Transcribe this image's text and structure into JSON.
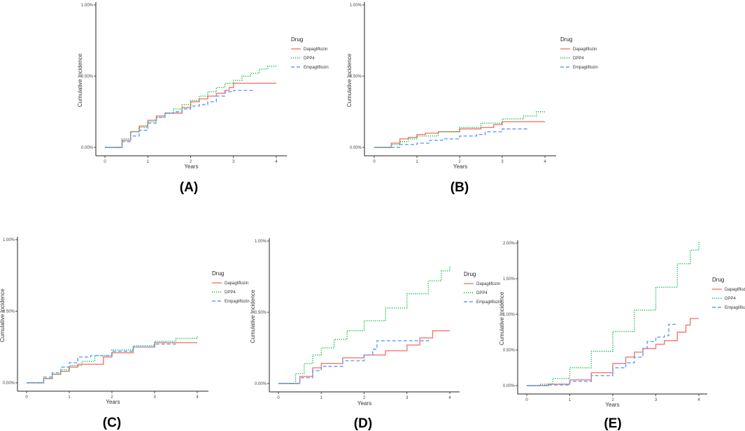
{
  "chart_data": [
    {
      "type": "line",
      "panel_label": "(A)",
      "xlabel": "Years",
      "ylabel": "Cumulative Incidence",
      "xlim": [
        0,
        4
      ],
      "ylim": [
        0,
        1.0
      ],
      "x_ticks": [
        0,
        1,
        2,
        3,
        4
      ],
      "y_ticks": [
        0,
        0.5,
        1.0
      ],
      "y_tick_labels": [
        "0.00%",
        "0.50%",
        "1.00%"
      ],
      "grid": false,
      "legend": {
        "title": "Drug",
        "placement": "right",
        "entries": [
          "Dapagliflozin",
          "DPP4",
          "Empagliflozin"
        ]
      },
      "series": [
        {
          "name": "Dapagliflozin",
          "style": "solid",
          "color": "#F8766D",
          "x": [
            0,
            0.2,
            0.4,
            0.6,
            0.8,
            1.0,
            1.2,
            1.4,
            1.6,
            1.8,
            2.0,
            2.2,
            2.4,
            2.6,
            2.8,
            2.9,
            3.0,
            3.5,
            4.0
          ],
          "y": [
            0,
            0,
            0.05,
            0.11,
            0.15,
            0.19,
            0.22,
            0.24,
            0.24,
            0.28,
            0.32,
            0.34,
            0.36,
            0.38,
            0.4,
            0.42,
            0.45,
            0.45,
            0.45
          ]
        },
        {
          "name": "DPP4",
          "style": "dotted",
          "color": "#00BA38",
          "x": [
            0,
            0.2,
            0.4,
            0.6,
            0.8,
            1.0,
            1.2,
            1.4,
            1.6,
            1.8,
            2.0,
            2.2,
            2.4,
            2.6,
            2.8,
            3.0,
            3.2,
            3.4,
            3.6,
            3.8,
            4.0
          ],
          "y": [
            0,
            0,
            0.06,
            0.11,
            0.14,
            0.18,
            0.21,
            0.24,
            0.27,
            0.3,
            0.33,
            0.36,
            0.39,
            0.42,
            0.45,
            0.47,
            0.5,
            0.52,
            0.55,
            0.57,
            0.57
          ]
        },
        {
          "name": "Empagliflozin",
          "style": "dashed",
          "color": "#619CFF",
          "x": [
            0,
            0.2,
            0.4,
            0.6,
            0.8,
            1.0,
            1.2,
            1.4,
            1.6,
            1.8,
            2.0,
            2.2,
            2.4,
            2.6,
            2.8,
            3.0,
            3.5
          ],
          "y": [
            0,
            0,
            0.04,
            0.08,
            0.12,
            0.17,
            0.21,
            0.24,
            0.25,
            0.27,
            0.29,
            0.3,
            0.32,
            0.36,
            0.39,
            0.4,
            0.4
          ]
        }
      ]
    },
    {
      "type": "line",
      "panel_label": "(B)",
      "xlabel": "Years",
      "ylabel": "Cumulative Incidence",
      "xlim": [
        0,
        4
      ],
      "ylim": [
        0,
        1.0
      ],
      "x_ticks": [
        0,
        1,
        2,
        3,
        4
      ],
      "y_ticks": [
        0,
        0.5,
        1.0
      ],
      "y_tick_labels": [
        "0.00%",
        "0.50%",
        "1.00%"
      ],
      "grid": false,
      "legend": {
        "title": "Drug",
        "placement": "right",
        "entries": [
          "Dapagliflozin",
          "DPP4",
          "Empagliflozin"
        ]
      },
      "series": [
        {
          "name": "Dapagliflozin",
          "style": "solid",
          "color": "#F8766D",
          "x": [
            0,
            0.2,
            0.4,
            0.6,
            0.8,
            1.0,
            1.2,
            1.5,
            2.0,
            2.5,
            2.8,
            3.0,
            3.5,
            4.0
          ],
          "y": [
            0,
            0,
            0.03,
            0.06,
            0.07,
            0.09,
            0.1,
            0.11,
            0.13,
            0.14,
            0.16,
            0.18,
            0.18,
            0.18
          ]
        },
        {
          "name": "DPP4",
          "style": "dotted",
          "color": "#00BA38",
          "x": [
            0,
            0.2,
            0.4,
            0.6,
            0.8,
            1.0,
            1.5,
            2.0,
            2.5,
            3.0,
            3.5,
            3.8,
            4.0
          ],
          "y": [
            0,
            0,
            0.02,
            0.04,
            0.06,
            0.08,
            0.11,
            0.14,
            0.17,
            0.2,
            0.22,
            0.25,
            0.25
          ]
        },
        {
          "name": "Empagliflozin",
          "style": "dashed",
          "color": "#619CFF",
          "x": [
            0,
            0.3,
            0.6,
            1.0,
            1.3,
            1.6,
            2.0,
            2.4,
            2.6,
            3.0,
            3.6
          ],
          "y": [
            0,
            0,
            0.02,
            0.03,
            0.05,
            0.06,
            0.08,
            0.09,
            0.11,
            0.13,
            0.13
          ]
        }
      ]
    },
    {
      "type": "line",
      "panel_label": "(C)",
      "xlabel": "Years",
      "ylabel": "Cumulative Incidence",
      "xlim": [
        0,
        4
      ],
      "ylim": [
        0,
        1.0
      ],
      "x_ticks": [
        0,
        1,
        2,
        3,
        4
      ],
      "y_ticks": [
        0,
        0.5,
        1.0
      ],
      "y_tick_labels": [
        "0.00%",
        "0.50%",
        "1.00%"
      ],
      "grid": false,
      "legend": {
        "title": "Drug",
        "placement": "right",
        "entries": [
          "Dapagliflozin",
          "DPP4",
          "Empagliflozin"
        ]
      },
      "series": [
        {
          "name": "Dapagliflozin",
          "style": "solid",
          "color": "#F8766D",
          "x": [
            0,
            0.2,
            0.4,
            0.6,
            0.8,
            1.0,
            1.2,
            1.5,
            1.8,
            2.0,
            2.5,
            3.0,
            4.0
          ],
          "y": [
            0,
            0,
            0.03,
            0.06,
            0.08,
            0.11,
            0.13,
            0.13,
            0.18,
            0.21,
            0.25,
            0.28,
            0.28
          ]
        },
        {
          "name": "DPP4",
          "style": "dotted",
          "color": "#00BA38",
          "x": [
            0,
            0.2,
            0.4,
            0.6,
            0.8,
            1.0,
            1.3,
            1.6,
            2.0,
            2.5,
            3.0,
            3.5,
            4.0
          ],
          "y": [
            0,
            0,
            0.03,
            0.06,
            0.09,
            0.12,
            0.15,
            0.19,
            0.23,
            0.26,
            0.29,
            0.31,
            0.33
          ]
        },
        {
          "name": "Empagliflozin",
          "style": "dashed",
          "color": "#619CFF",
          "x": [
            0,
            0.2,
            0.4,
            0.6,
            0.8,
            1.0,
            1.2,
            1.5,
            2.0,
            2.5,
            3.0,
            3.5
          ],
          "y": [
            0,
            0,
            0.04,
            0.07,
            0.11,
            0.14,
            0.18,
            0.19,
            0.22,
            0.25,
            0.27,
            0.27
          ]
        }
      ]
    },
    {
      "type": "line",
      "panel_label": "(D)",
      "xlabel": "Years",
      "ylabel": "Cumulative Incidence",
      "xlim": [
        0,
        4
      ],
      "ylim": [
        0,
        1.0
      ],
      "x_ticks": [
        0,
        1,
        2,
        3,
        4
      ],
      "y_ticks": [
        0,
        0.5,
        1.0
      ],
      "y_tick_labels": [
        "0.00%",
        "0.50%",
        "1.00%"
      ],
      "grid": false,
      "legend": {
        "title": "Drug",
        "placement": "right",
        "entries": [
          "Dapagliflozin",
          "DPP4",
          "Empagliflozin"
        ]
      },
      "series": [
        {
          "name": "Dapagliflozin",
          "style": "solid",
          "color": "#F8766D",
          "x": [
            0,
            0.25,
            0.5,
            0.8,
            1.0,
            1.5,
            2.0,
            2.5,
            3.0,
            3.3,
            3.6,
            4.0
          ],
          "y": [
            0,
            0,
            0.05,
            0.11,
            0.14,
            0.18,
            0.2,
            0.23,
            0.27,
            0.32,
            0.37,
            0.37
          ]
        },
        {
          "name": "DPP4",
          "style": "dotted",
          "color": "#00BA38",
          "x": [
            0,
            0.25,
            0.4,
            0.6,
            0.8,
            1.0,
            1.3,
            1.6,
            2.0,
            2.5,
            3.0,
            3.5,
            3.8,
            4.0
          ],
          "y": [
            0,
            0,
            0.07,
            0.14,
            0.2,
            0.25,
            0.31,
            0.37,
            0.44,
            0.53,
            0.63,
            0.72,
            0.79,
            0.82
          ]
        },
        {
          "name": "Empagliflozin",
          "style": "dashed",
          "color": "#619CFF",
          "x": [
            0,
            0.25,
            0.5,
            0.8,
            1.0,
            1.5,
            2.0,
            2.2,
            2.3,
            2.5,
            3.0,
            3.5
          ],
          "y": [
            0,
            0,
            0.04,
            0.09,
            0.12,
            0.16,
            0.2,
            0.24,
            0.3,
            0.3,
            0.3,
            0.31
          ]
        }
      ]
    },
    {
      "type": "line",
      "panel_label": "(E)",
      "xlabel": "Years",
      "ylabel": "Cumulative Incidence",
      "xlim": [
        0,
        4
      ],
      "ylim": [
        0,
        2.0
      ],
      "x_ticks": [
        0,
        1,
        2,
        3,
        4
      ],
      "y_ticks": [
        0,
        0.5,
        1.0,
        1.5,
        2.0
      ],
      "y_tick_labels": [
        "0.00%",
        "0.50%",
        "1.00%",
        "1.50%",
        "2.00%"
      ],
      "grid": false,
      "legend": {
        "title": "Drug",
        "placement": "right",
        "entries": [
          "Dapagliflozin",
          "DPP4",
          "Empagliflozin"
        ]
      },
      "series": [
        {
          "name": "Dapagliflozin",
          "style": "solid",
          "color": "#F8766D",
          "x": [
            0,
            0.5,
            1.0,
            1.5,
            2.0,
            2.3,
            2.5,
            2.7,
            3.0,
            3.2,
            3.5,
            3.7,
            3.8,
            4.0
          ],
          "y": [
            0,
            0.02,
            0.08,
            0.18,
            0.31,
            0.4,
            0.47,
            0.52,
            0.58,
            0.63,
            0.75,
            0.85,
            0.94,
            0.94
          ]
        },
        {
          "name": "DPP4",
          "style": "dotted",
          "color": "#00BA38",
          "x": [
            0,
            0.3,
            0.6,
            1.0,
            1.5,
            2.0,
            2.5,
            3.0,
            3.5,
            3.8,
            4.0
          ],
          "y": [
            0,
            0.02,
            0.1,
            0.25,
            0.48,
            0.76,
            1.06,
            1.38,
            1.71,
            1.9,
            2.03
          ]
        },
        {
          "name": "Empagliflozin",
          "style": "dashed",
          "color": "#619CFF",
          "x": [
            0,
            0.5,
            1.0,
            1.5,
            2.0,
            2.3,
            2.5,
            2.7,
            2.8,
            3.0,
            3.2,
            3.3,
            3.4,
            3.5
          ],
          "y": [
            0,
            0.01,
            0.06,
            0.14,
            0.25,
            0.32,
            0.4,
            0.52,
            0.62,
            0.68,
            0.7,
            0.86,
            0.86,
            0.86
          ]
        }
      ]
    }
  ]
}
